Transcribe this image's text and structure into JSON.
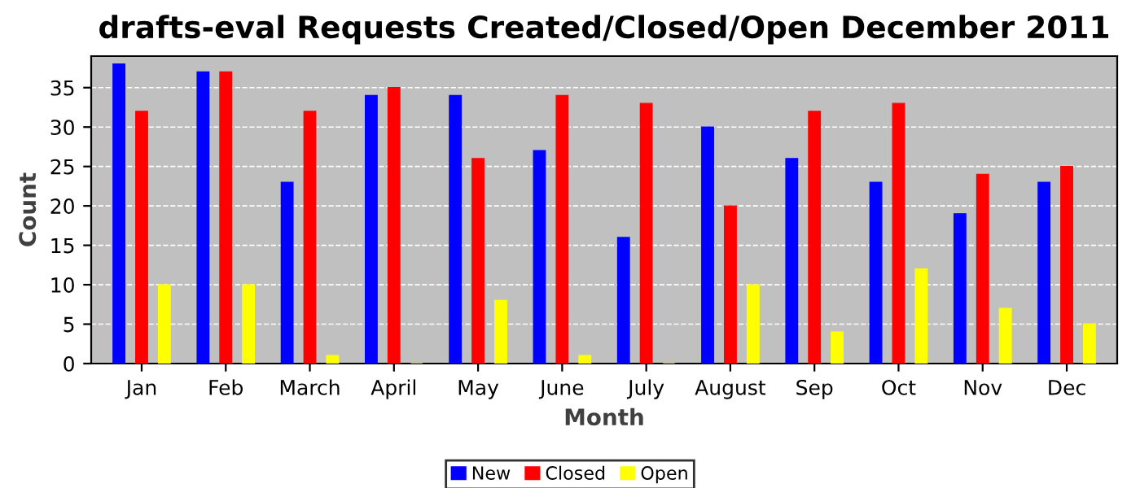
{
  "chart_data": {
    "type": "bar",
    "title": "drafts-eval Requests Created/Closed/Open December 2011",
    "xlabel": "Month",
    "ylabel": "Count",
    "categories": [
      "Jan",
      "Feb",
      "March",
      "April",
      "May",
      "June",
      "July",
      "August",
      "Sep",
      "Oct",
      "Nov",
      "Dec"
    ],
    "series": [
      {
        "name": "New",
        "color": "#0000ff",
        "values": [
          38,
          37,
          23,
          34,
          34,
          27,
          16,
          30,
          26,
          23,
          19,
          23
        ]
      },
      {
        "name": "Closed",
        "color": "#ff0000",
        "values": [
          32,
          37,
          32,
          35,
          26,
          34,
          33,
          20,
          32,
          33,
          24,
          25
        ]
      },
      {
        "name": "Open",
        "color": "#ffff00",
        "values": [
          10,
          10,
          1,
          0,
          8,
          1,
          0,
          10,
          4,
          12,
          7,
          5
        ]
      }
    ],
    "ylim": [
      0,
      39
    ],
    "yticks": [
      0,
      5,
      10,
      15,
      20,
      25,
      30,
      35
    ],
    "grid": "y",
    "legend": "bottom"
  }
}
